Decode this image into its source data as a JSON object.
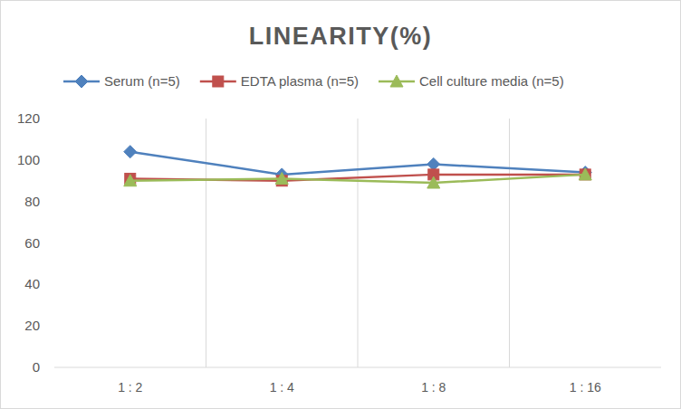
{
  "chart_data": {
    "type": "line",
    "title": "LINEARITY(%)",
    "categories": [
      "1 : 2",
      "1 : 4",
      "1 : 8",
      "1 : 16"
    ],
    "series": [
      {
        "name": "Serum (n=5)",
        "color": "#4f81bd",
        "marker": "diamond",
        "values": [
          104,
          93,
          98,
          94
        ]
      },
      {
        "name": "EDTA plasma (n=5)",
        "color": "#c0504d",
        "marker": "square",
        "values": [
          91,
          90,
          93,
          93
        ]
      },
      {
        "name": "Cell culture media (n=5)",
        "color": "#9bbb59",
        "marker": "triangle",
        "values": [
          90,
          91,
          89,
          93
        ]
      }
    ],
    "ylim": [
      0,
      120
    ],
    "yticks": [
      0,
      20,
      40,
      60,
      80,
      100,
      120
    ],
    "grid": true,
    "legend": "top"
  }
}
